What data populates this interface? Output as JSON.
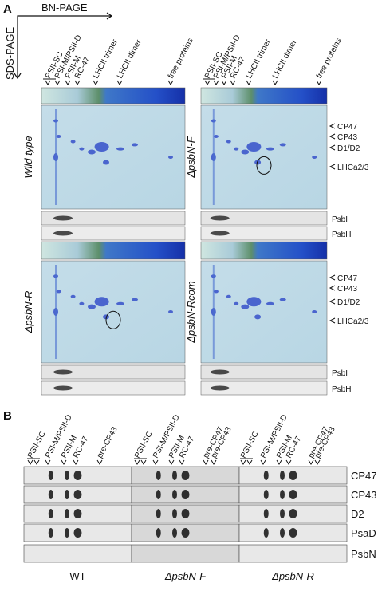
{
  "panel_a": {
    "label": "A",
    "axis_x": "BN-PAGE",
    "axis_y": "SDS-PAGE",
    "lanes": [
      "PSII-SC",
      "PSI-M/PSII-D",
      "PSII-M",
      "RC-47",
      "LHCII trimer",
      "LHCII dimer",
      "free proteins"
    ],
    "gels": [
      "Wild type",
      "ΔpsbN-F",
      "ΔpsbN-R",
      "ΔpsbN-Rcom"
    ],
    "proteins": [
      "CP47",
      "CP43",
      "D1/D2",
      "LHCa2/3"
    ],
    "blots": [
      "PsbI",
      "PsbH"
    ]
  },
  "panel_b": {
    "label": "B",
    "groups": [
      {
        "name": "WT",
        "lanes": [
          "PSII-SC",
          "PSI-M/PSII-D",
          "PSII-M",
          "RC-47",
          "pre-CP43"
        ]
      },
      {
        "name": "ΔpsbN-F",
        "lanes": [
          "PSII-SC",
          "PSI-M/PSII-D",
          "PSII-M",
          "RC-47",
          "pre-CP47",
          "pre-CP43"
        ]
      },
      {
        "name": "ΔpsbN-R",
        "lanes": [
          "PSII-SC",
          "PSI-M/PSII-D",
          "PSII-M",
          "RC-47",
          "pre-CP47",
          "pre-CP43"
        ]
      }
    ],
    "rows": [
      "CP47",
      "CP43",
      "D2",
      "PsaD",
      "PsbN"
    ]
  }
}
